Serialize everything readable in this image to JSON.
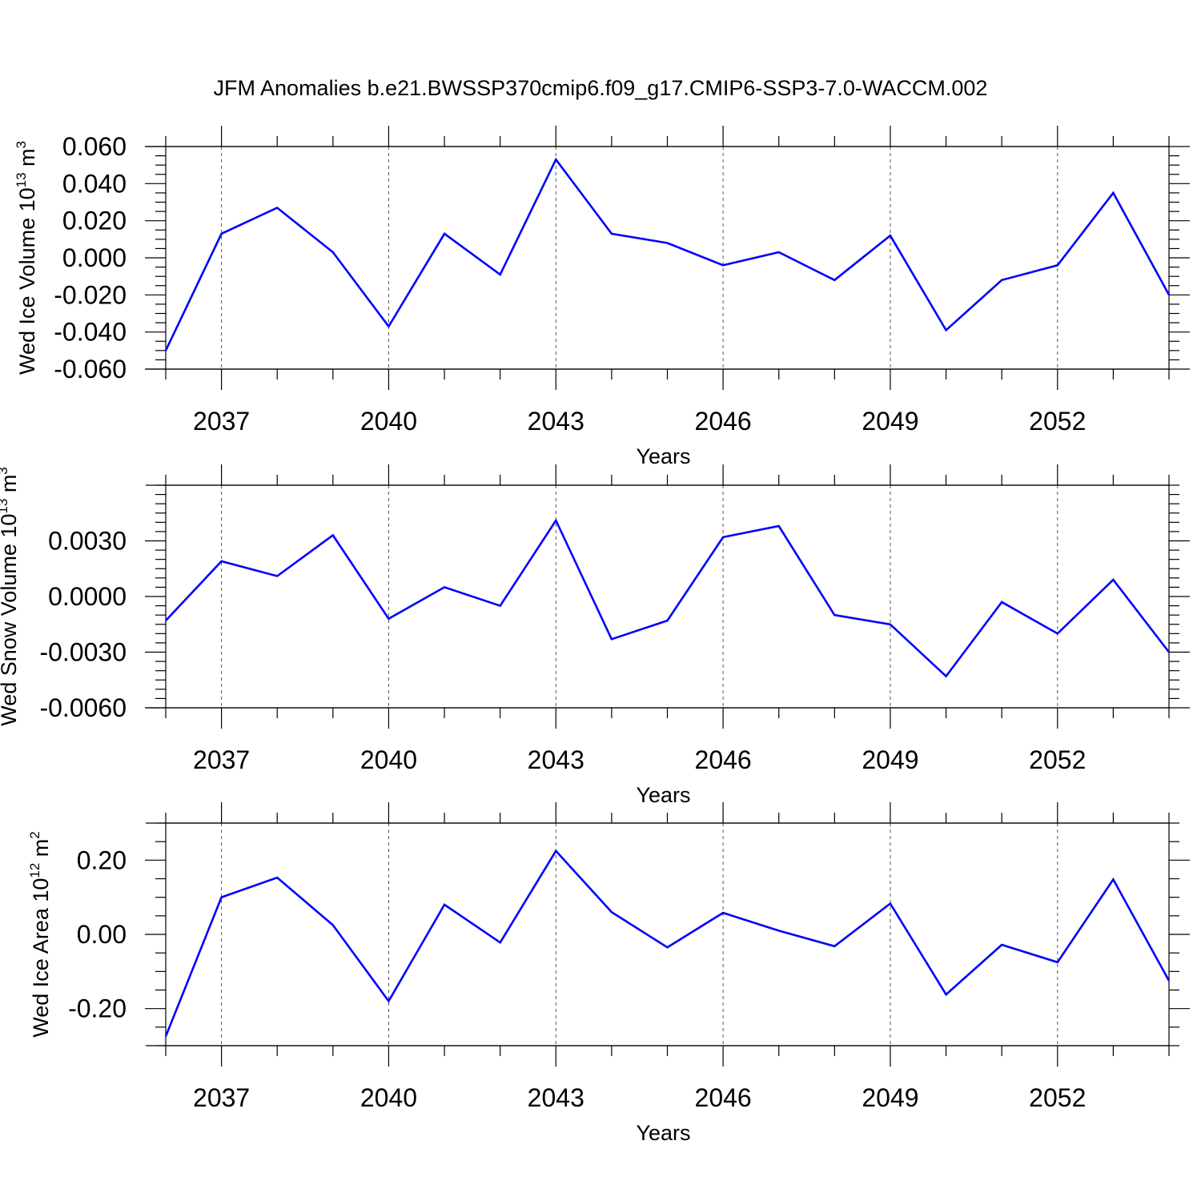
{
  "figure": {
    "title": "JFM Anomalies b.e21.BWSSP370cmip6.f09_g17.CMIP6-SSP3-7.0-WACCM.002"
  },
  "style": {
    "line_color": "#0000ff",
    "axis_color": "#000000",
    "grid_color": "#555555"
  },
  "chart_data": [
    {
      "type": "line",
      "title": "",
      "xlabel": "Years",
      "ylabel": {
        "text": "Wed Ice Volume 10",
        "exp": "13",
        "unit": " m",
        "unit_exp": "3"
      },
      "xlim": [
        2036,
        2054
      ],
      "ylim": [
        -0.06,
        0.06
      ],
      "x_ticks": [
        2037,
        2040,
        2043,
        2046,
        2049,
        2052
      ],
      "x_tick_labels": [
        "2037",
        "2040",
        "2043",
        "2046",
        "2049",
        "2052"
      ],
      "y_ticks": [
        -0.06,
        -0.04,
        -0.02,
        0.0,
        0.02,
        0.04,
        0.06
      ],
      "y_tick_labels": [
        "-0.060",
        "-0.040",
        "-0.020",
        "0.000",
        "0.020",
        "0.040",
        "0.060"
      ],
      "y_minor_step": 0.005,
      "grid": "vertical dashed at x ticks",
      "x": [
        2036,
        2037,
        2038,
        2039,
        2040,
        2041,
        2042,
        2043,
        2044,
        2045,
        2046,
        2047,
        2048,
        2049,
        2050,
        2051,
        2052,
        2053,
        2054
      ],
      "series": [
        {
          "values": [
            -0.05,
            0.013,
            0.027,
            0.003,
            -0.037,
            0.013,
            -0.009,
            0.053,
            0.013,
            0.008,
            -0.004,
            0.003,
            -0.012,
            0.012,
            -0.039,
            -0.012,
            -0.004,
            0.035,
            -0.02
          ]
        }
      ]
    },
    {
      "type": "line",
      "title": "",
      "xlabel": "Years",
      "ylabel": {
        "text": "Wed Snow Volume 10",
        "exp": "13",
        "unit": " m",
        "unit_exp": "3"
      },
      "xlim": [
        2036,
        2054
      ],
      "ylim": [
        -0.006,
        0.006
      ],
      "x_ticks": [
        2037,
        2040,
        2043,
        2046,
        2049,
        2052
      ],
      "x_tick_labels": [
        "2037",
        "2040",
        "2043",
        "2046",
        "2049",
        "2052"
      ],
      "y_ticks": [
        -0.006,
        -0.003,
        0.0,
        0.003
      ],
      "y_tick_labels": [
        "-0.0060",
        "-0.0030",
        "0.0000",
        "0.0030"
      ],
      "y_minor_step": 0.0005,
      "grid": "vertical dashed at x ticks",
      "x": [
        2036,
        2037,
        2038,
        2039,
        2040,
        2041,
        2042,
        2043,
        2044,
        2045,
        2046,
        2047,
        2048,
        2049,
        2050,
        2051,
        2052,
        2053,
        2054
      ],
      "series": [
        {
          "values": [
            -0.0013,
            0.0019,
            0.0011,
            0.0033,
            -0.0012,
            0.0005,
            -0.0005,
            0.0041,
            -0.0023,
            -0.0013,
            0.0032,
            0.0038,
            -0.001,
            -0.0015,
            -0.0043,
            -0.0003,
            -0.002,
            0.0009,
            -0.003
          ]
        }
      ]
    },
    {
      "type": "line",
      "title": "",
      "xlabel": "Years",
      "ylabel": {
        "text": "Wed Ice Area 10",
        "exp": "12",
        "unit": " m",
        "unit_exp": "2"
      },
      "xlim": [
        2036,
        2054
      ],
      "ylim": [
        -0.3,
        0.3
      ],
      "x_ticks": [
        2037,
        2040,
        2043,
        2046,
        2049,
        2052
      ],
      "x_tick_labels": [
        "2037",
        "2040",
        "2043",
        "2046",
        "2049",
        "2052"
      ],
      "y_ticks": [
        -0.2,
        0.0,
        0.2
      ],
      "y_tick_labels": [
        "-0.20",
        "0.00",
        "0.20"
      ],
      "y_minor_step": 0.05,
      "grid": "vertical dashed at x ticks",
      "x": [
        2036,
        2037,
        2038,
        2039,
        2040,
        2041,
        2042,
        2043,
        2044,
        2045,
        2046,
        2047,
        2048,
        2049,
        2050,
        2051,
        2052,
        2053,
        2054
      ],
      "series": [
        {
          "values": [
            -0.275,
            0.1,
            0.153,
            0.025,
            -0.18,
            0.08,
            -0.022,
            0.225,
            0.06,
            -0.035,
            0.058,
            0.01,
            -0.032,
            0.083,
            -0.162,
            -0.028,
            -0.075,
            0.148,
            -0.125
          ]
        }
      ]
    }
  ]
}
